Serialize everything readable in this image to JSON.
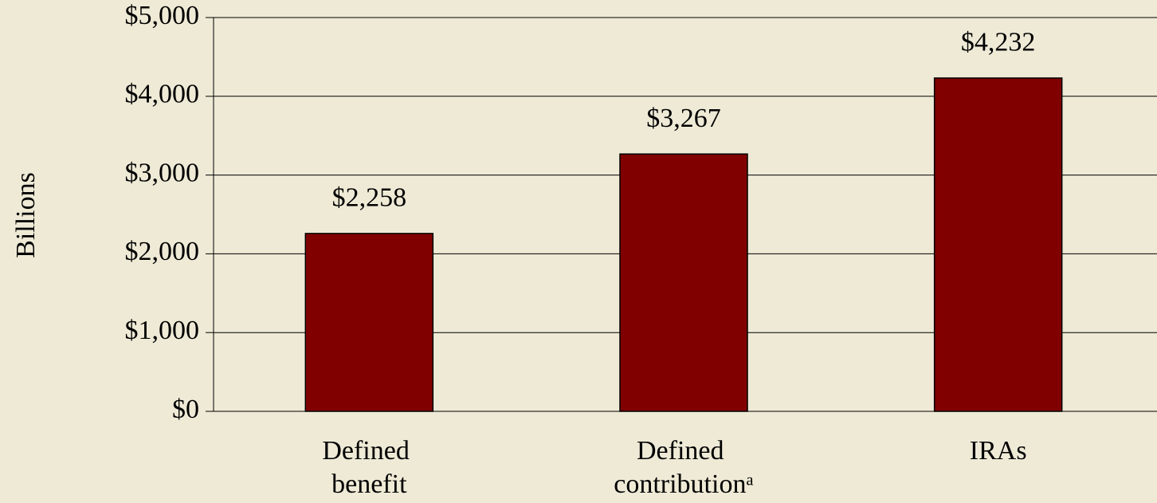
{
  "chart_data": {
    "type": "bar",
    "y_label": "Billions",
    "categories": [
      "Defined benefit",
      "Defined contributionᵃ",
      "IRAs"
    ],
    "values": [
      2258,
      3267,
      4232
    ],
    "value_labels": [
      "$2,258",
      "$3,267",
      "$4,232"
    ],
    "color": "#800000",
    "ylim": [
      0,
      5000
    ],
    "yticks": [
      {
        "value": 0,
        "label": "$0"
      },
      {
        "value": 1000,
        "label": "$1,000"
      },
      {
        "value": 2000,
        "label": "$2,000"
      },
      {
        "value": 3000,
        "label": "$3,000"
      },
      {
        "value": 4000,
        "label": "$4,000"
      },
      {
        "value": 5000,
        "label": "$5,000"
      }
    ],
    "grid": true
  }
}
